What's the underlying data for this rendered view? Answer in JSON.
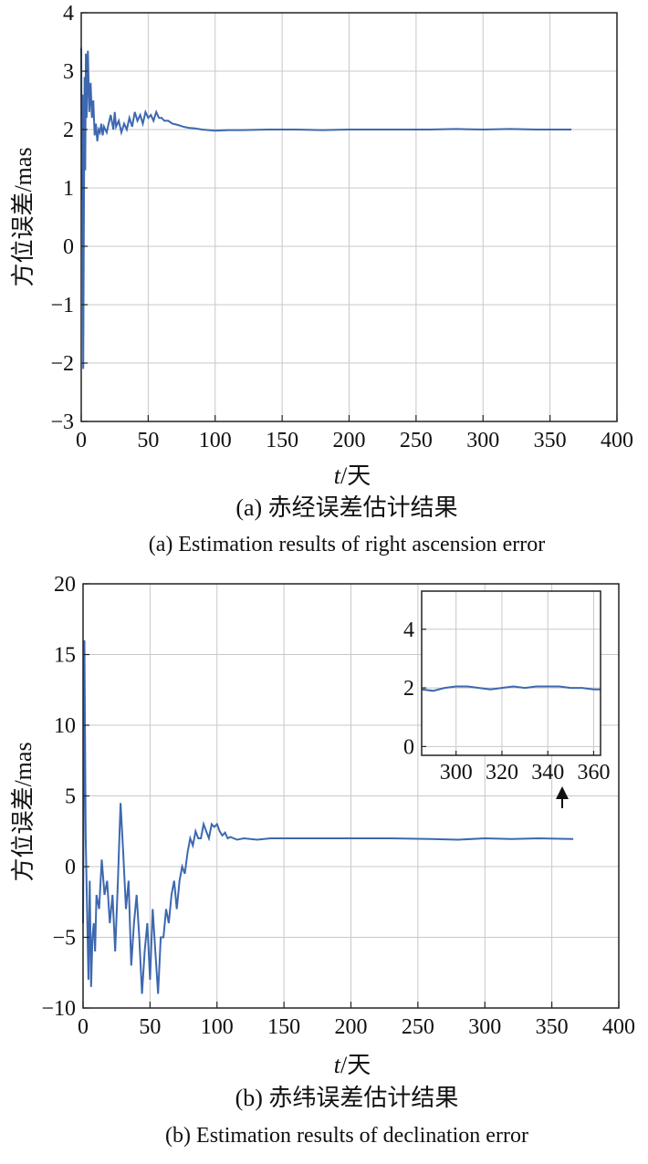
{
  "chart_data": [
    {
      "type": "line",
      "caption_cn": "(a) 赤经误差估计结果",
      "caption_en": "(a) Estimation results of right ascension error",
      "xlabel_italic": "t",
      "xlabel_rest": "/天",
      "ylabel": "方位误差/mas",
      "xlim": [
        0,
        400
      ],
      "ylim": [
        -3,
        4
      ],
      "xticks": [
        0,
        50,
        100,
        150,
        200,
        250,
        300,
        350,
        400
      ],
      "yticks": [
        -3,
        -2,
        -1,
        0,
        1,
        2,
        3,
        4
      ],
      "ytick_labels": [
        "−3",
        "−2",
        "−1",
        "0",
        "1",
        "2",
        "3",
        "4"
      ],
      "grid": true,
      "line_color": "#3d68b0",
      "series": [
        {
          "x": [
            0,
            0.5,
            1,
            1.5,
            2,
            2.5,
            3,
            3.5,
            4,
            5,
            6,
            7,
            8,
            9,
            10,
            11,
            12,
            13,
            14,
            15,
            16,
            17,
            18,
            19,
            20,
            22,
            24,
            25,
            26,
            28,
            30,
            32,
            34,
            36,
            38,
            40,
            42,
            44,
            46,
            48,
            50,
            52,
            54,
            56,
            58,
            60,
            62,
            65,
            68,
            72,
            76,
            80,
            85,
            90,
            95,
            100,
            110,
            120,
            140,
            160,
            180,
            200,
            220,
            240,
            260,
            280,
            300,
            320,
            340,
            366
          ],
          "y": [
            3.4,
            0.8,
            2.6,
            -2.1,
            0.5,
            2.9,
            1.3,
            3.3,
            2.2,
            3.35,
            2.3,
            2.8,
            2.2,
            2.5,
            1.9,
            2.1,
            1.8,
            2.0,
            1.95,
            2.1,
            1.9,
            2.05,
            2.0,
            1.95,
            2.05,
            2.25,
            2.0,
            2.3,
            2.05,
            2.15,
            1.95,
            2.1,
            2.0,
            2.2,
            2.05,
            2.3,
            2.15,
            2.25,
            2.1,
            2.3,
            2.2,
            2.25,
            2.15,
            2.3,
            2.2,
            2.2,
            2.15,
            2.15,
            2.1,
            2.08,
            2.05,
            2.03,
            2.02,
            2.0,
            1.99,
            1.98,
            1.99,
            1.99,
            2.0,
            2.0,
            1.99,
            2.0,
            2.0,
            2.0,
            2.0,
            2.01,
            2.0,
            2.01,
            2.0,
            2.0
          ]
        }
      ]
    },
    {
      "type": "line",
      "caption_cn": "(b) 赤纬误差估计结果",
      "caption_en": "(b) Estimation results of declination error",
      "xlabel_italic": "t",
      "xlabel_rest": "/天",
      "ylabel": "方位误差/mas",
      "xlim": [
        0,
        400
      ],
      "ylim": [
        -10,
        20
      ],
      "xticks": [
        0,
        50,
        100,
        150,
        200,
        250,
        300,
        350,
        400
      ],
      "yticks": [
        -10,
        -5,
        0,
        5,
        10,
        15,
        20
      ],
      "ytick_labels": [
        "−10",
        "−5",
        "0",
        "5",
        "10",
        "15",
        "20"
      ],
      "grid": true,
      "line_color": "#3d68b0",
      "series": [
        {
          "x": [
            0,
            1,
            2,
            3,
            4,
            5,
            6,
            7,
            8,
            9,
            10,
            12,
            14,
            16,
            18,
            20,
            22,
            24,
            26,
            28,
            30,
            32,
            34,
            36,
            38,
            40,
            42,
            44,
            46,
            48,
            50,
            52,
            54,
            56,
            58,
            60,
            62,
            64,
            66,
            68,
            70,
            72,
            74,
            76,
            78,
            80,
            82,
            84,
            86,
            88,
            90,
            92,
            94,
            96,
            98,
            100,
            102,
            104,
            106,
            108,
            110,
            115,
            120,
            130,
            140,
            150,
            170,
            200,
            230,
            260,
            280,
            300,
            320,
            340,
            366
          ],
          "y": [
            -4,
            16,
            2,
            -3,
            -8,
            -1,
            -8.5,
            -5,
            -4,
            -6,
            -2,
            -3,
            0.5,
            -2,
            -1,
            -4,
            -2,
            -6,
            -1,
            4.5,
            1,
            -3,
            -1,
            -7,
            -4,
            -2,
            -5,
            -9,
            -6,
            -4,
            -8,
            -3,
            -6,
            -9,
            -5,
            -5,
            -3,
            -4,
            -2,
            -1,
            -3,
            -1,
            0,
            -0.5,
            1,
            2,
            1.5,
            2.5,
            2,
            2,
            3,
            2.5,
            2,
            3,
            2.8,
            3,
            2.5,
            2.2,
            2.4,
            2,
            2.1,
            1.9,
            2.0,
            1.9,
            2.0,
            2.0,
            2.0,
            2.0,
            2.0,
            1.95,
            1.9,
            2.0,
            1.95,
            2.0,
            1.95
          ]
        }
      ],
      "inset": {
        "xlim": [
          285,
          363
        ],
        "ylim": [
          -0.3,
          5.3
        ],
        "xticks": [
          300,
          320,
          340,
          360
        ],
        "yticks": [
          0,
          2,
          4
        ],
        "grid": true,
        "series": [
          {
            "x": [
              285,
              290,
              295,
              300,
              305,
              310,
              315,
              320,
              325,
              330,
              335,
              340,
              345,
              350,
              355,
              360,
              363
            ],
            "y": [
              1.95,
              1.9,
              2.0,
              2.05,
              2.05,
              2.0,
              1.95,
              2.0,
              2.05,
              2.0,
              2.05,
              2.05,
              2.05,
              2.0,
              2.0,
              1.95,
              1.95
            ]
          }
        ]
      }
    }
  ]
}
